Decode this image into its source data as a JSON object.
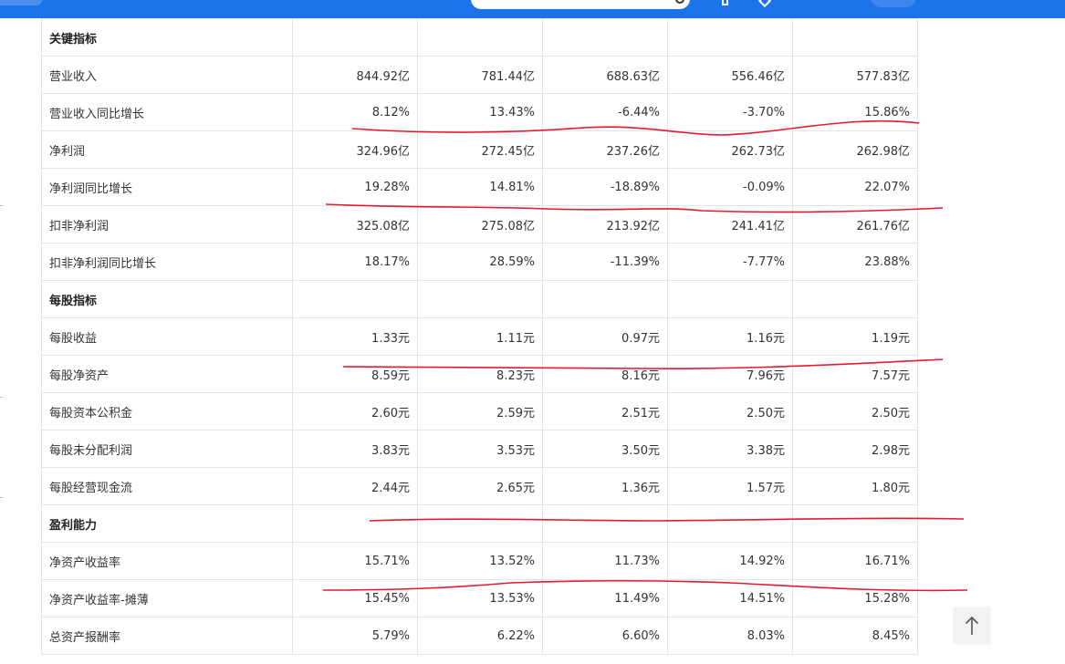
{
  "table": {
    "rows": [
      {
        "type": "section",
        "label": "关键指标",
        "values": []
      },
      {
        "type": "data",
        "label": "营业收入",
        "values": [
          "844.92亿",
          "781.44亿",
          "688.63亿",
          "556.46亿",
          "577.83亿"
        ]
      },
      {
        "type": "data",
        "label": "营业收入同比增长",
        "values": [
          "8.12%",
          "13.43%",
          "-6.44%",
          "-3.70%",
          "15.86%"
        ]
      },
      {
        "type": "data",
        "label": "净利润",
        "values": [
          "324.96亿",
          "272.45亿",
          "237.26亿",
          "262.73亿",
          "262.98亿"
        ]
      },
      {
        "type": "data",
        "label": "净利润同比增长",
        "values": [
          "19.28%",
          "14.81%",
          "-18.89%",
          "-0.09%",
          "22.07%"
        ]
      },
      {
        "type": "data",
        "label": "扣非净利润",
        "values": [
          "325.08亿",
          "275.08亿",
          "213.92亿",
          "241.41亿",
          "261.76亿"
        ]
      },
      {
        "type": "data",
        "label": "扣非净利润同比增长",
        "values": [
          "18.17%",
          "28.59%",
          "-11.39%",
          "-7.77%",
          "23.88%"
        ]
      },
      {
        "type": "section",
        "label": "每股指标",
        "values": []
      },
      {
        "type": "data",
        "label": "每股收益",
        "values": [
          "1.33元",
          "1.11元",
          "0.97元",
          "1.16元",
          "1.19元"
        ]
      },
      {
        "type": "data",
        "label": "每股净资产",
        "values": [
          "8.59元",
          "8.23元",
          "8.16元",
          "7.96元",
          "7.57元"
        ]
      },
      {
        "type": "data",
        "label": "每股资本公积金",
        "values": [
          "2.60元",
          "2.59元",
          "2.51元",
          "2.50元",
          "2.50元"
        ]
      },
      {
        "type": "data",
        "label": "每股未分配利润",
        "values": [
          "3.83元",
          "3.53元",
          "3.50元",
          "3.38元",
          "2.98元"
        ]
      },
      {
        "type": "data",
        "label": "每股经营现金流",
        "values": [
          "2.44元",
          "2.65元",
          "1.36元",
          "1.57元",
          "1.80元"
        ]
      },
      {
        "type": "section",
        "label": "盈利能力",
        "values": []
      },
      {
        "type": "data",
        "label": "净资产收益率",
        "values": [
          "15.71%",
          "13.52%",
          "11.73%",
          "14.92%",
          "16.71%"
        ]
      },
      {
        "type": "data",
        "label": "净资产收益率-摊薄",
        "values": [
          "15.45%",
          "13.53%",
          "11.49%",
          "14.51%",
          "15.28%"
        ]
      },
      {
        "type": "data",
        "label": "总资产报酬率",
        "values": [
          "5.79%",
          "6.22%",
          "6.60%",
          "8.03%",
          "8.45%"
        ]
      }
    ]
  },
  "icons": {
    "back_to_top": "arrow-up-icon",
    "search": "search-icon"
  },
  "colors": {
    "topbar": "#1a73e8",
    "annotation": "#e8192c",
    "grid": "#e4e4e4",
    "text": "#333333"
  }
}
